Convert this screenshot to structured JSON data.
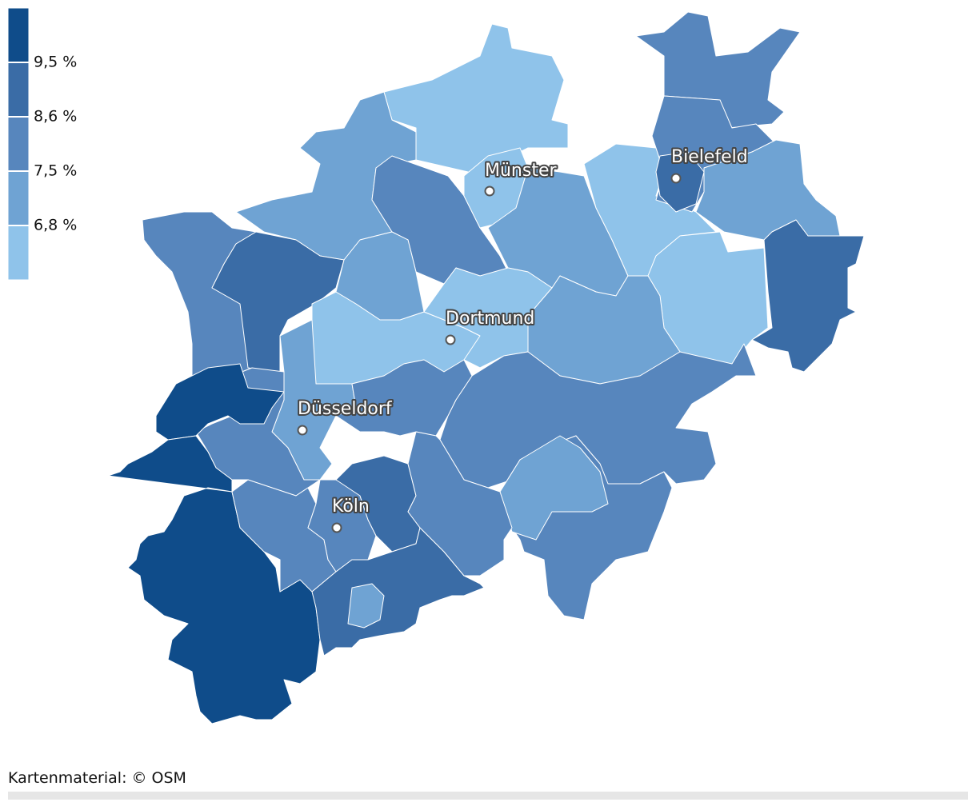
{
  "legend": {
    "labels": [
      "9,5 %",
      "8,6 %",
      "7,5 %",
      "6,8 %"
    ],
    "colors": [
      "#0f4c8a",
      "#3a6ca6",
      "#5786bd",
      "#6fa3d3",
      "#8fc3ea"
    ]
  },
  "cities": [
    "Münster",
    "Bielefeld",
    "Dortmund",
    "Düsseldorf",
    "Köln"
  ],
  "footer": "Kartenmaterial: © OSM"
}
